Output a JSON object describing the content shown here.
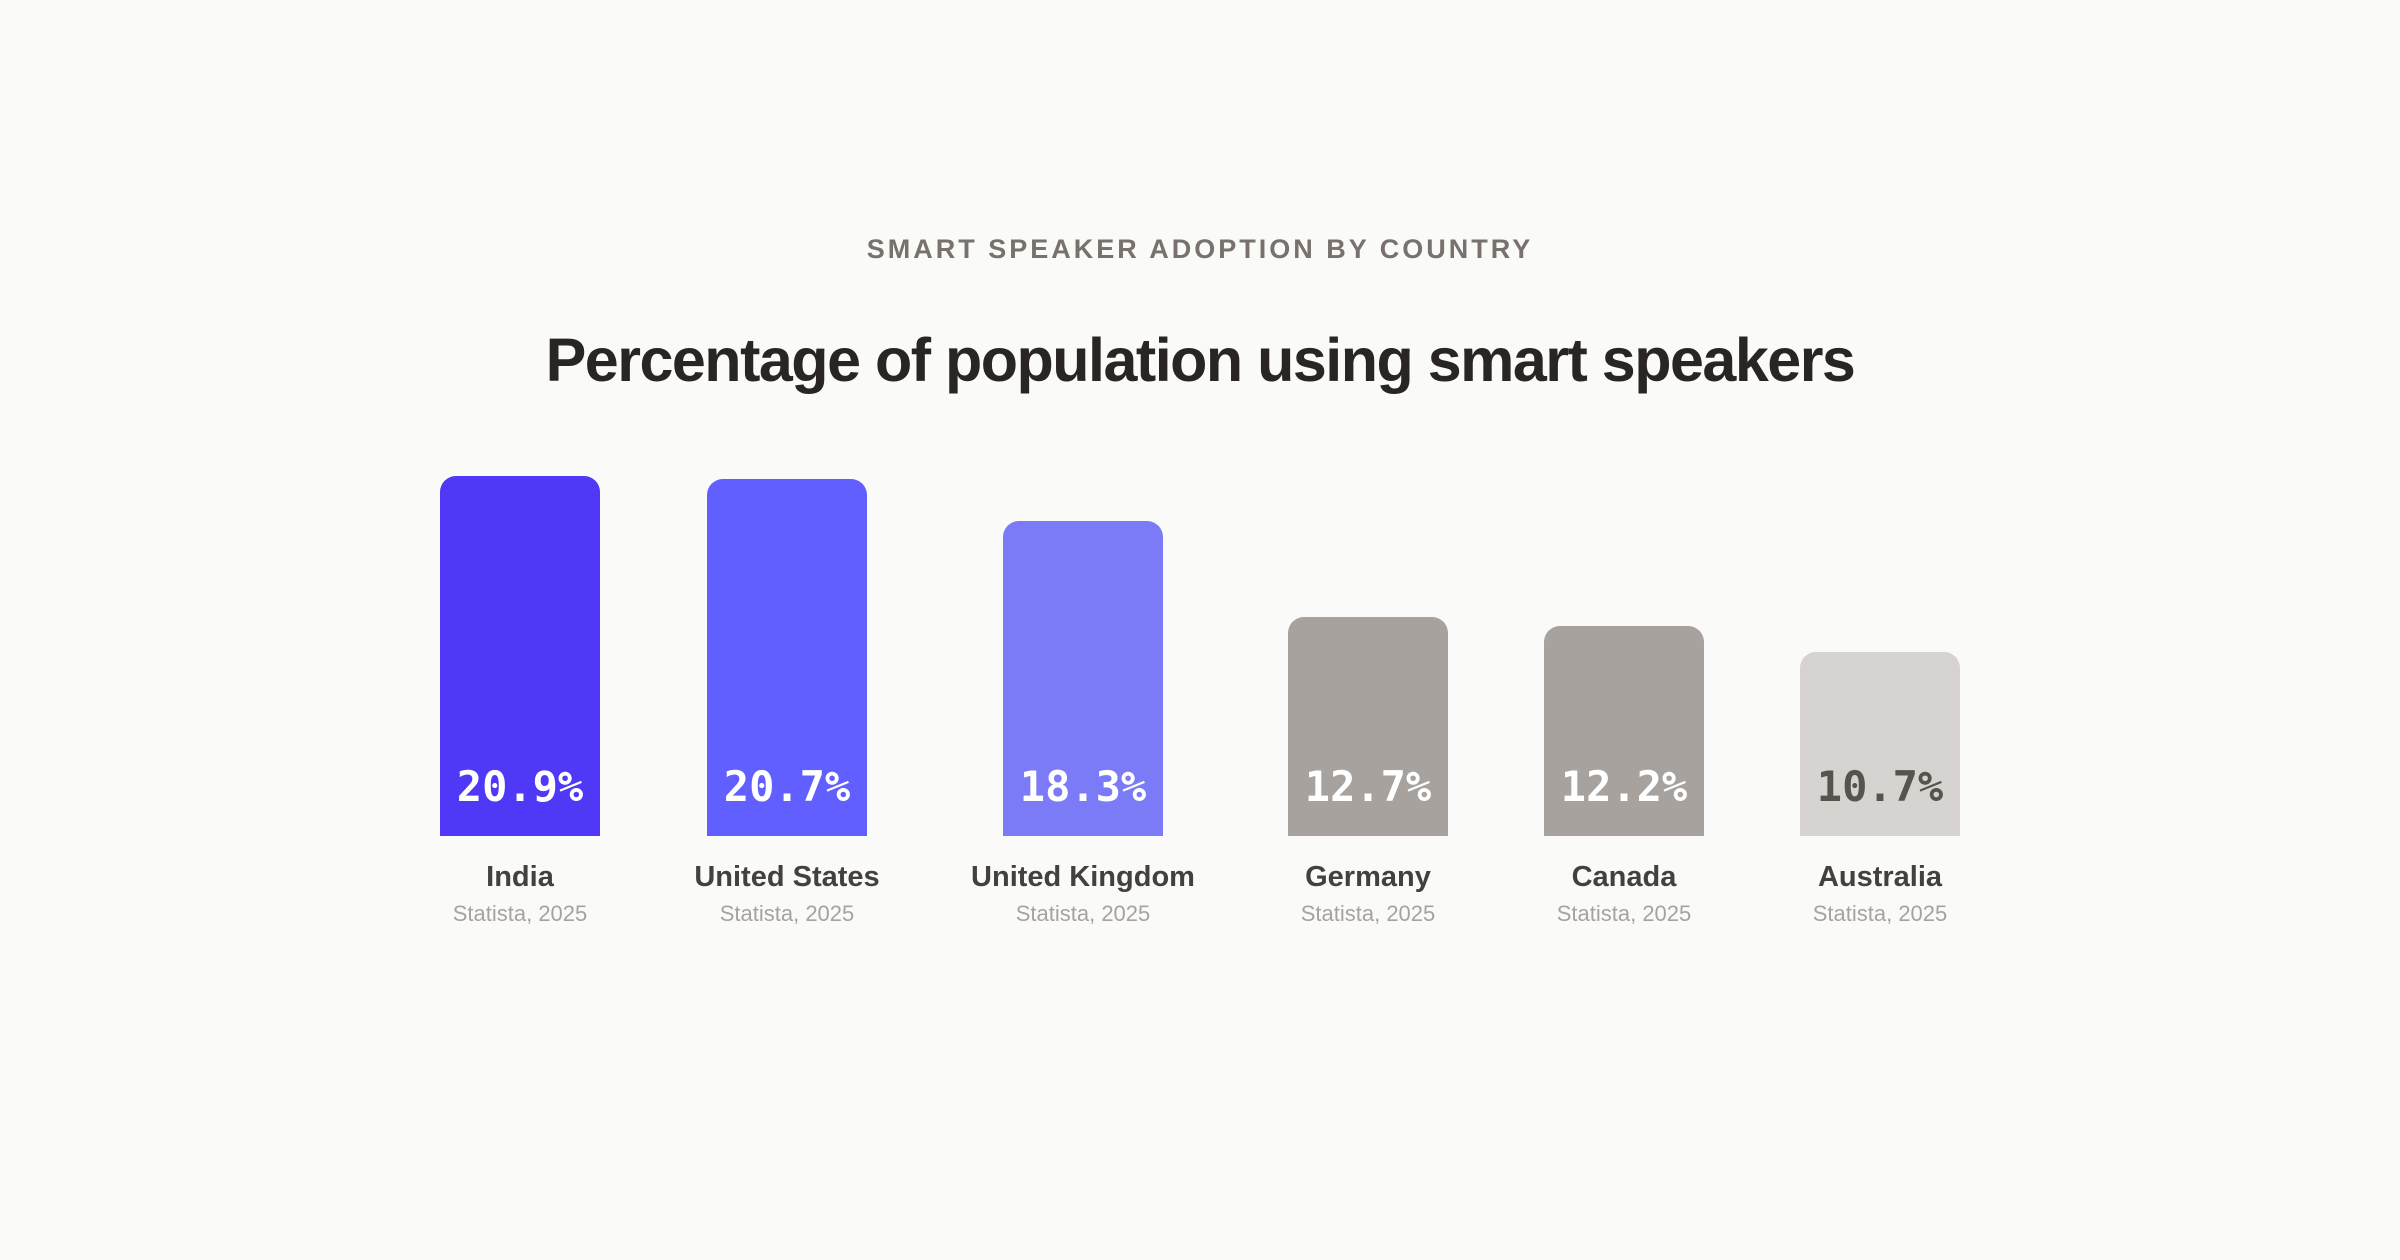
{
  "header": {
    "eyebrow": "SMART SPEAKER ADOPTION BY COUNTRY",
    "title": "Percentage of population using smart speakers"
  },
  "chart_data": {
    "type": "bar",
    "categories": [
      "India",
      "United States",
      "United Kingdom",
      "Germany",
      "Canada",
      "Australia"
    ],
    "values": [
      20.9,
      20.7,
      18.3,
      12.7,
      12.2,
      10.7
    ],
    "value_labels": [
      "20.9%",
      "20.7%",
      "18.3%",
      "12.7%",
      "12.2%",
      "10.7%"
    ],
    "sources": [
      "Statista, 2025",
      "Statista, 2025",
      "Statista, 2025",
      "Statista, 2025",
      "Statista, 2025",
      "Statista, 2025"
    ],
    "unit": "%",
    "ylim": [
      0,
      20.9
    ],
    "grid": false,
    "bar_colors": [
      "#4f39f6",
      "#615fff",
      "#7c7bf7",
      "#a8a29e",
      "#a8a29e",
      "#d6d3d1"
    ],
    "label_colors": [
      "#ffffff",
      "#ffffff",
      "#ffffff",
      "#ffffff",
      "#ffffff",
      "#57534e"
    ]
  }
}
